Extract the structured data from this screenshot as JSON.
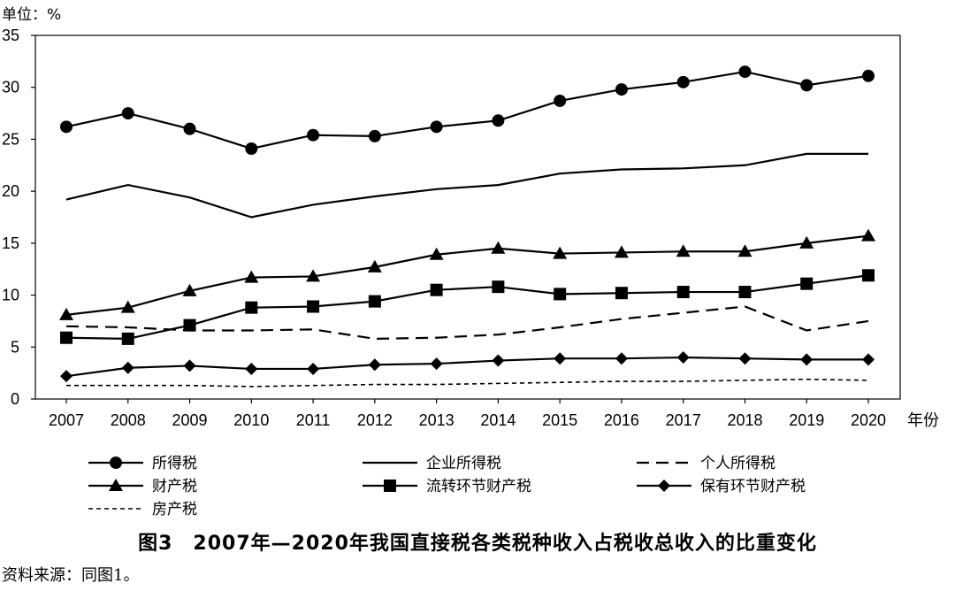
{
  "chart_data": {
    "type": "line",
    "unit_label": "单位：%",
    "xlabel": "年份",
    "ylim": [
      0,
      35
    ],
    "yticks": [
      0,
      5,
      10,
      15,
      20,
      25,
      30,
      35
    ],
    "categories": [
      "2007",
      "2008",
      "2009",
      "2010",
      "2011",
      "2012",
      "2013",
      "2014",
      "2015",
      "2016",
      "2017",
      "2018",
      "2019",
      "2020"
    ],
    "grid": false,
    "legend_position": "bottom",
    "series": [
      {
        "name": "所得税",
        "line": "solid",
        "marker": "circle",
        "values": [
          26.2,
          27.5,
          26.0,
          24.1,
          25.4,
          25.3,
          26.2,
          26.8,
          28.7,
          29.8,
          30.5,
          31.5,
          30.2,
          31.1
        ]
      },
      {
        "name": "企业所得税",
        "line": "solid",
        "marker": "none",
        "values": [
          19.2,
          20.6,
          19.4,
          17.5,
          18.7,
          19.5,
          20.2,
          20.6,
          21.7,
          22.1,
          22.2,
          22.5,
          23.6,
          23.6
        ]
      },
      {
        "name": "个人所得税",
        "line": "dashed",
        "marker": "none",
        "values": [
          7.0,
          6.9,
          6.6,
          6.6,
          6.7,
          5.8,
          5.9,
          6.2,
          6.9,
          7.7,
          8.3,
          8.9,
          6.6,
          7.5
        ]
      },
      {
        "name": "财产税",
        "line": "solid",
        "marker": "triangle",
        "values": [
          8.1,
          8.8,
          10.4,
          11.7,
          11.8,
          12.7,
          13.9,
          14.5,
          14.0,
          14.1,
          14.2,
          14.2,
          15.0,
          15.7
        ]
      },
      {
        "name": "流转环节财产税",
        "line": "solid",
        "marker": "square",
        "values": [
          5.9,
          5.8,
          7.1,
          8.8,
          8.9,
          9.4,
          10.5,
          10.8,
          10.1,
          10.2,
          10.3,
          10.3,
          11.1,
          11.9
        ]
      },
      {
        "name": "保有环节财产税",
        "line": "solid",
        "marker": "diamond",
        "values": [
          2.2,
          3.0,
          3.2,
          2.9,
          2.9,
          3.3,
          3.4,
          3.7,
          3.9,
          3.9,
          4.0,
          3.9,
          3.8,
          3.8
        ]
      },
      {
        "name": "房产税",
        "line": "dotted",
        "marker": "none",
        "values": [
          1.3,
          1.3,
          1.3,
          1.2,
          1.3,
          1.4,
          1.4,
          1.5,
          1.6,
          1.7,
          1.7,
          1.8,
          1.9,
          1.8
        ]
      }
    ]
  },
  "caption": "图3　2007年—2020年我国直接税各类税种收入占税收总收入的比重变化",
  "source": "资料来源：同图1。"
}
